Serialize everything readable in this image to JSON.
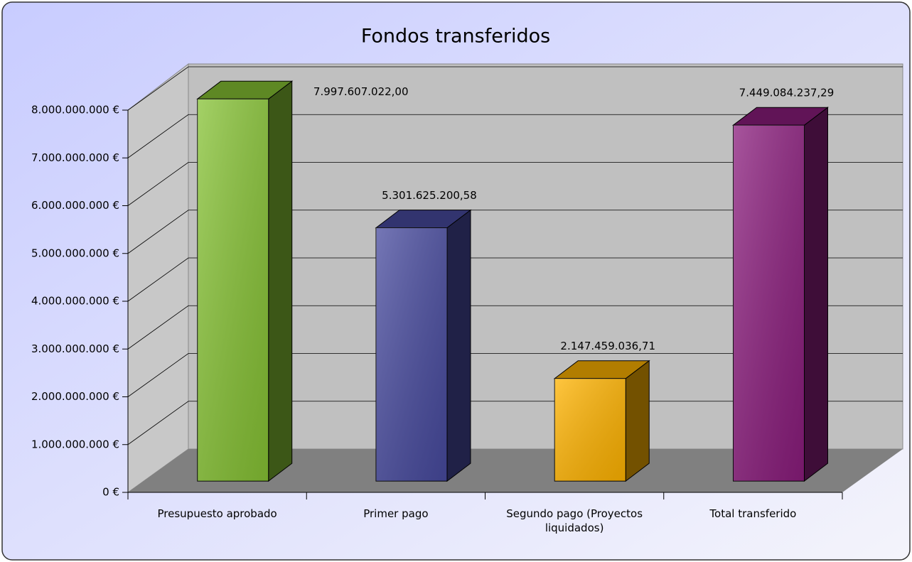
{
  "chart_data": {
    "type": "bar3d",
    "title": "Fondos transferidos",
    "categories": [
      "Presupuesto aprobado",
      "Primer pago",
      "Segundo pago (Proyectos liquidados)",
      "Total transferido"
    ],
    "values": [
      7997607022.0,
      5301625200.58,
      2147459036.71,
      7449084237.29
    ],
    "value_labels": [
      "7.997.607.022,00",
      "5.301.625.200,58",
      "2.147.459.036,71",
      "7.449.084.237,29"
    ],
    "colors": [
      "#86c234",
      "#474a9e",
      "#ffb300",
      "#8a1c7c"
    ],
    "ylim": [
      0,
      8000000000
    ],
    "yticks": [
      {
        "value": 0,
        "label": "0 €"
      },
      {
        "value": 1000000000,
        "label": "1.000.000.000 €"
      },
      {
        "value": 2000000000,
        "label": "2.000.000.000 €"
      },
      {
        "value": 3000000000,
        "label": "3.000.000.000 €"
      },
      {
        "value": 4000000000,
        "label": "4.000.000.000 €"
      },
      {
        "value": 5000000000,
        "label": "5.000.000.000 €"
      },
      {
        "value": 6000000000,
        "label": "6.000.000.000 €"
      },
      {
        "value": 7000000000,
        "label": "7.000.000.000 €"
      },
      {
        "value": 8000000000,
        "label": "8.000.000.000 €"
      }
    ],
    "grid": true
  }
}
